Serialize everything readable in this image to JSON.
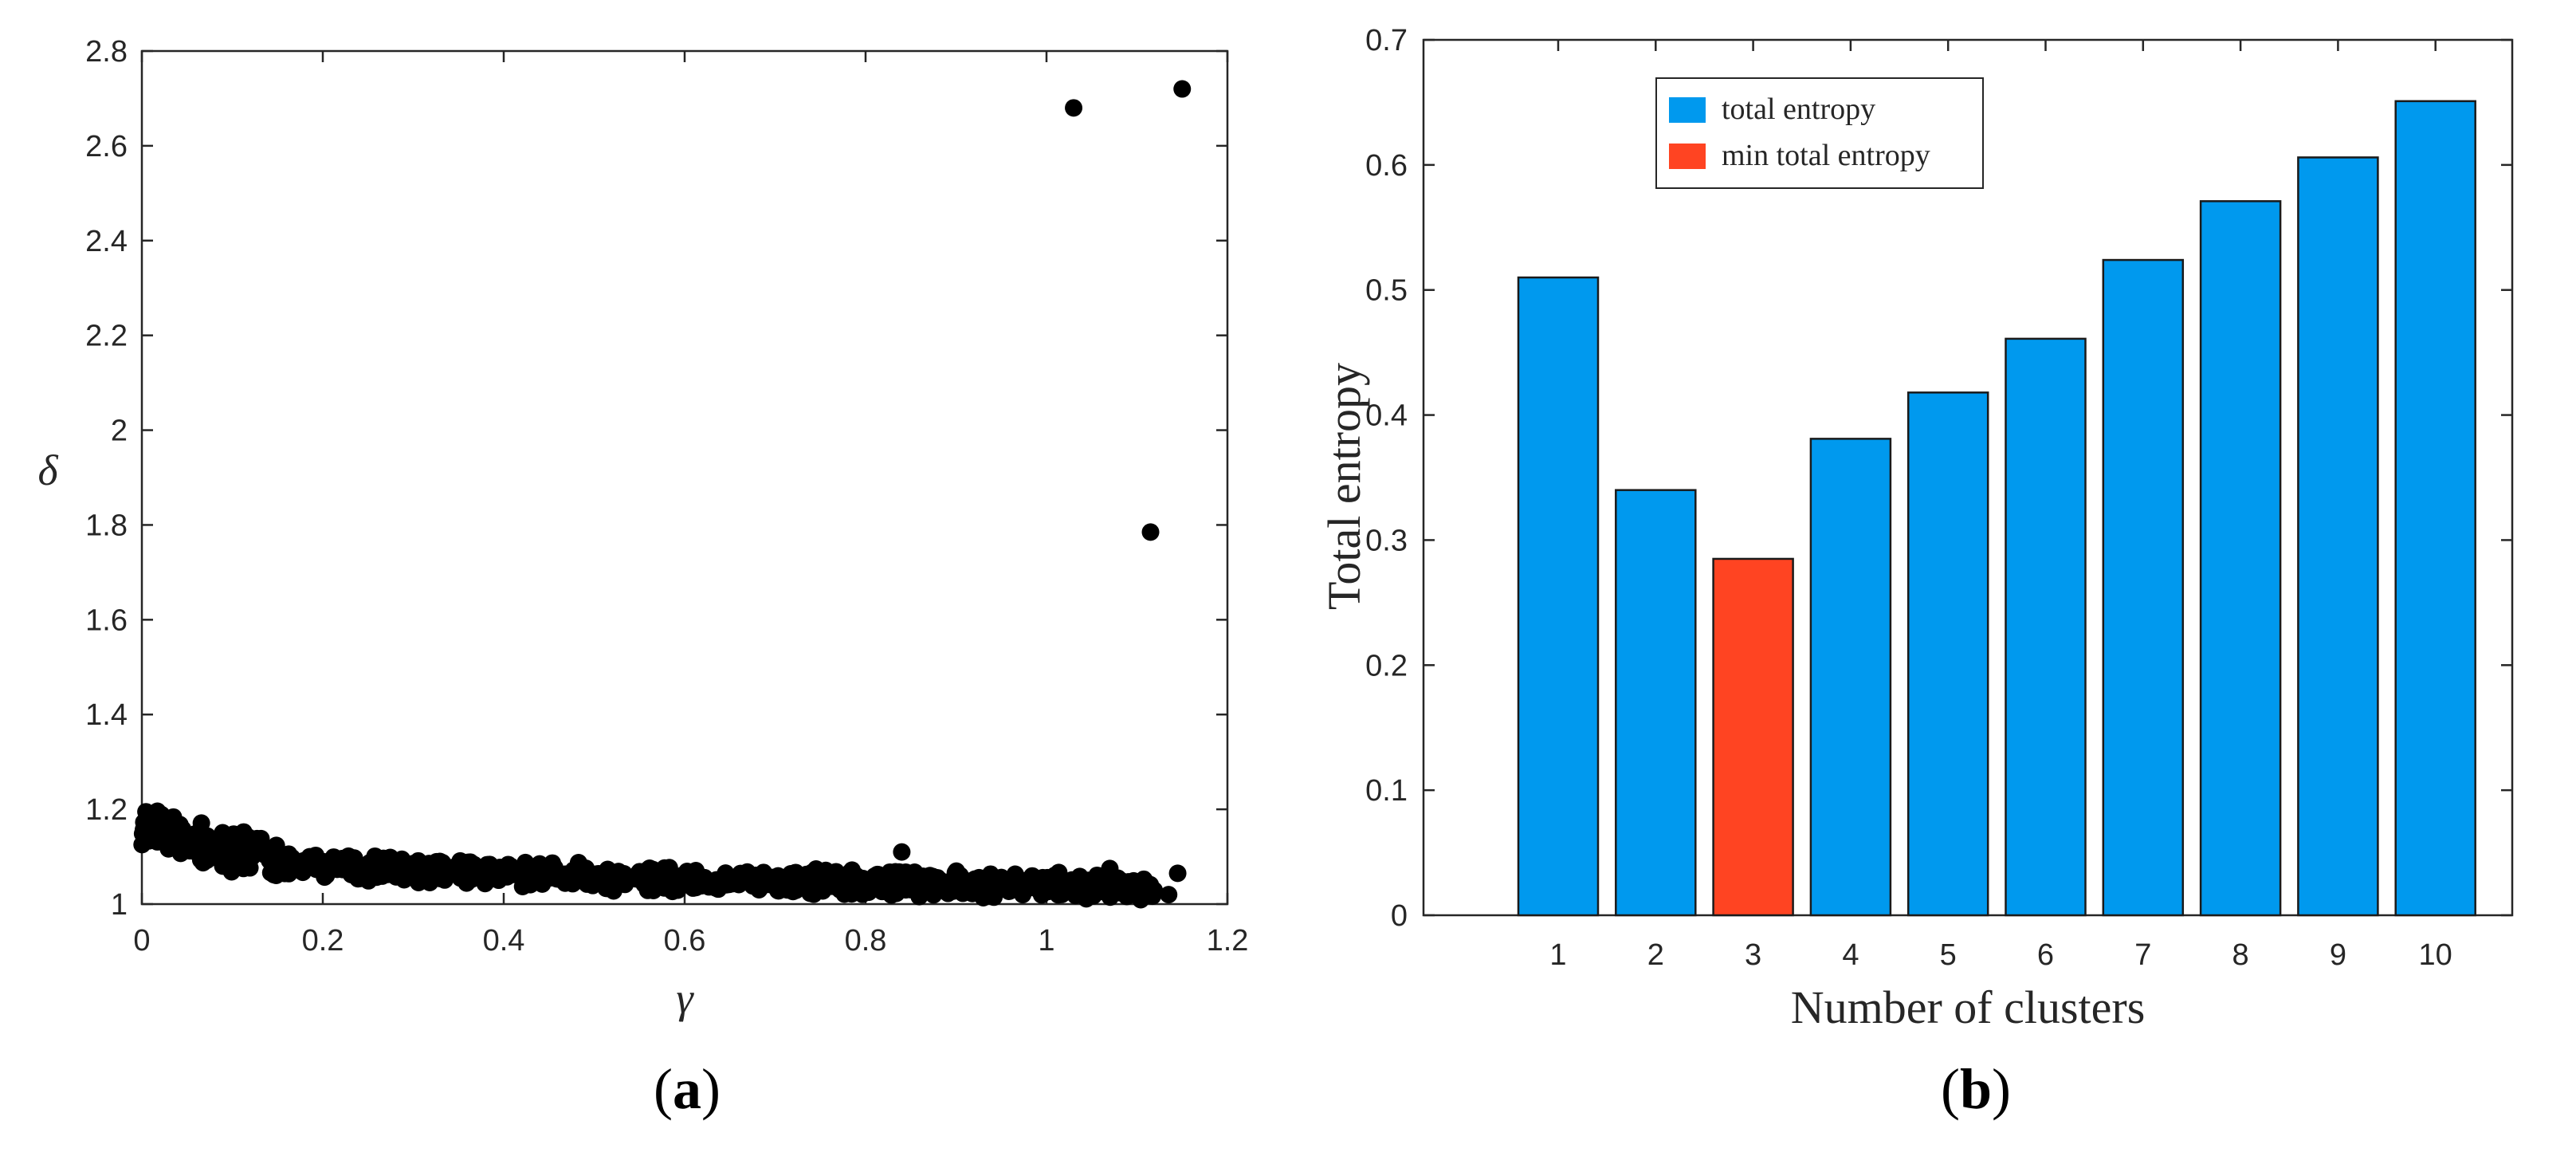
{
  "chart_data": [
    {
      "type": "scatter",
      "panel_label": "a",
      "xlabel": "γ",
      "ylabel": "δ",
      "xlim": [
        0,
        1.2
      ],
      "ylim": [
        1,
        2.8
      ],
      "xticks": [
        "0",
        "0.2",
        "0.4",
        "0.6",
        "0.8",
        "1",
        "1.2"
      ],
      "yticks": [
        "1",
        "1.2",
        "1.4",
        "1.6",
        "1.8",
        "2",
        "2.2",
        "2.4",
        "2.6",
        "2.8"
      ],
      "marker_color": "#000000",
      "outliers": [
        {
          "x": 1.03,
          "y": 2.68
        },
        {
          "x": 1.15,
          "y": 2.72
        },
        {
          "x": 1.115,
          "y": 1.785
        },
        {
          "x": 0.84,
          "y": 1.11
        },
        {
          "x": 1.145,
          "y": 1.065
        },
        {
          "x": 1.135,
          "y": 1.02
        },
        {
          "x": 1.07,
          "y": 1.075
        }
      ],
      "dense_band": {
        "x_range": [
          0,
          1.12
        ],
        "y_trend": [
          {
            "x": 0.0,
            "y": 1.17
          },
          {
            "x": 0.1,
            "y": 1.11
          },
          {
            "x": 0.2,
            "y": 1.08
          },
          {
            "x": 0.4,
            "y": 1.065
          },
          {
            "x": 0.6,
            "y": 1.05
          },
          {
            "x": 0.8,
            "y": 1.045
          },
          {
            "x": 1.0,
            "y": 1.04
          },
          {
            "x": 1.12,
            "y": 1.03
          }
        ],
        "spread": 0.03,
        "count": 900
      }
    },
    {
      "type": "bar",
      "panel_label": "b",
      "xlabel": "Number of clusters",
      "ylabel": "Total entropy",
      "categories": [
        "1",
        "2",
        "3",
        "4",
        "5",
        "6",
        "7",
        "8",
        "9",
        "10"
      ],
      "values": [
        0.51,
        0.34,
        0.285,
        0.381,
        0.418,
        0.461,
        0.524,
        0.571,
        0.606,
        0.651
      ],
      "highlight_index": 2,
      "ylim": [
        0,
        0.7
      ],
      "yticks": [
        "0",
        "0.1",
        "0.2",
        "0.3",
        "0.4",
        "0.5",
        "0.6",
        "0.7"
      ],
      "colors": {
        "normal": "#0099ee",
        "highlight": "#ff4422"
      },
      "legend": {
        "position": "top-left",
        "entries": [
          "total entropy",
          "min total entropy"
        ]
      }
    }
  ]
}
